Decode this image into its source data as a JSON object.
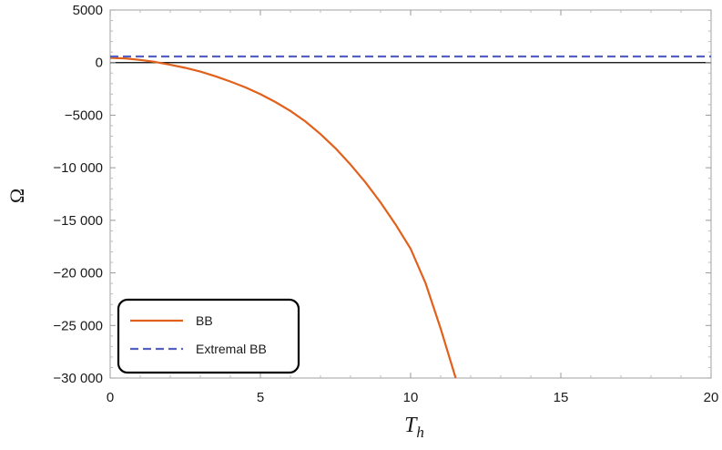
{
  "chart_data": {
    "type": "line",
    "xlabel": "T",
    "xlabel_sub": "h",
    "ylabel": "Ω",
    "xlim": [
      0,
      20
    ],
    "ylim": [
      -30000,
      5000
    ],
    "xticks": [
      0,
      5,
      10,
      15,
      20
    ],
    "xtick_labels": [
      "0",
      "5",
      "10",
      "15",
      "20"
    ],
    "yticks": [
      5000,
      0,
      -5000,
      -10000,
      -15000,
      -20000,
      -25000,
      -30000
    ],
    "ytick_labels": [
      "5000",
      "0",
      "−5000",
      "−10 000",
      "−15 000",
      "−20 000",
      "−25 000",
      "−30 000"
    ],
    "grid": false,
    "legend_placement": "bottom-left",
    "series": [
      {
        "name": "BB",
        "color": "#e1601b",
        "style": "solid",
        "x": [
          0,
          0.5,
          1,
          1.5,
          2,
          2.5,
          3,
          3.5,
          4,
          4.5,
          5,
          5.5,
          6,
          6.5,
          7,
          7.5,
          8,
          8.5,
          9,
          9.5,
          10,
          10.5,
          11,
          11.5
        ],
        "y": [
          450,
          400,
          250,
          60,
          -200,
          -500,
          -850,
          -1300,
          -1800,
          -2350,
          -3000,
          -3750,
          -4600,
          -5600,
          -6800,
          -8150,
          -9700,
          -11400,
          -13300,
          -15400,
          -17700,
          -21000,
          -25300,
          -30000
        ]
      },
      {
        "name": "Extremal BB",
        "color": "#5560c4",
        "style": "dashed",
        "x": [
          0,
          20
        ],
        "y": [
          580,
          580
        ]
      }
    ]
  }
}
